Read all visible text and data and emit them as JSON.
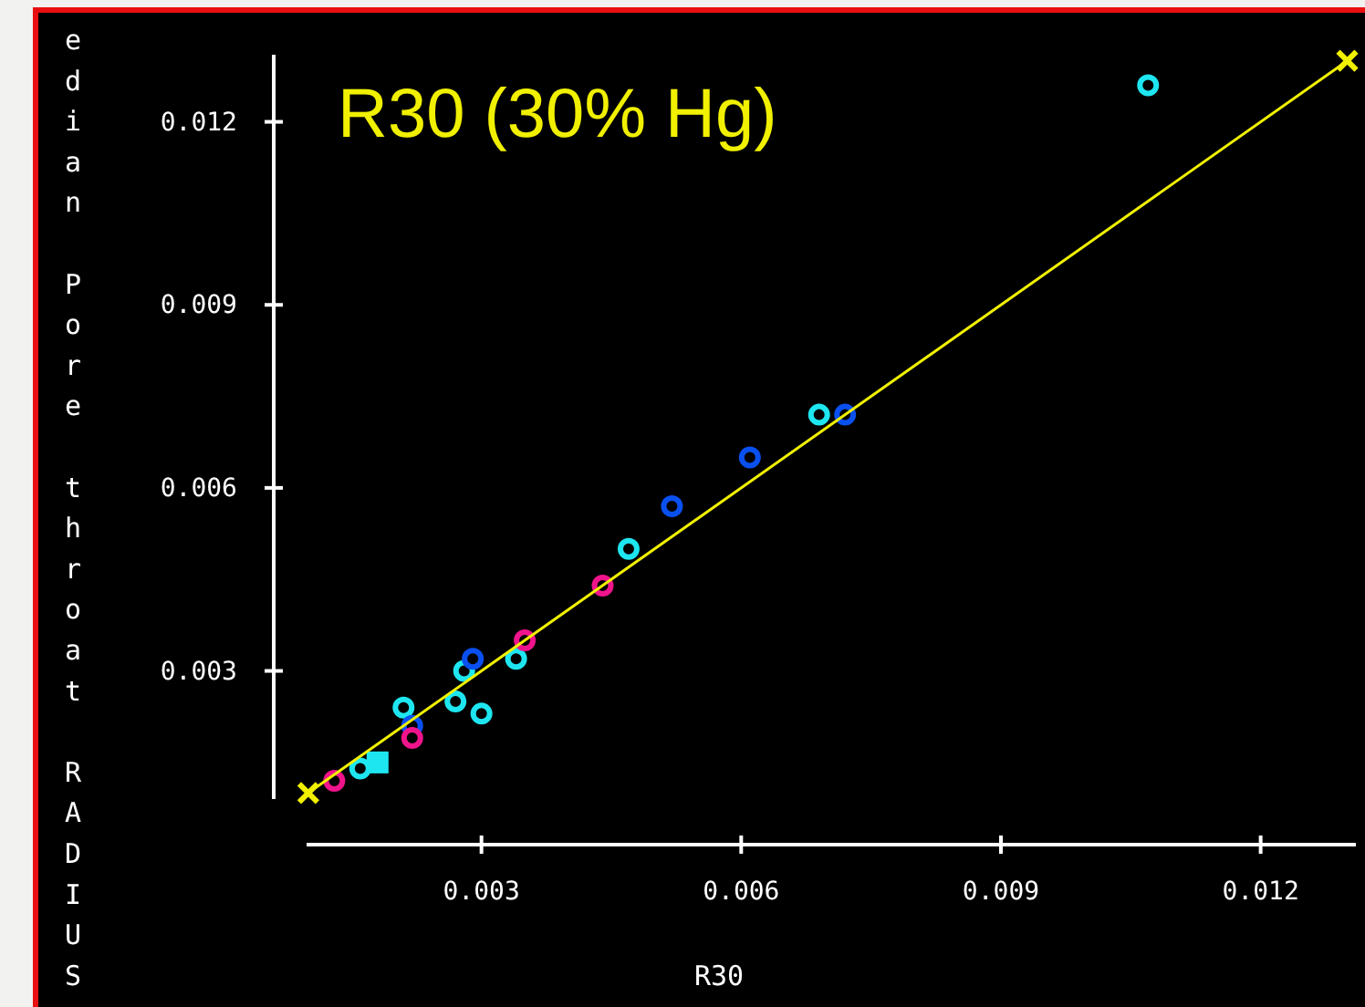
{
  "chart_data": {
    "type": "scatter",
    "title": "R30 (30% Hg)",
    "xlabel": "R30",
    "ylabel": "edian Pore throat RADIUS",
    "xlim": [
      0.00098,
      0.0131
    ],
    "ylim": [
      0.0009,
      0.0131
    ],
    "xticks": [
      0.003,
      0.006,
      0.009,
      0.012
    ],
    "yticks": [
      0.003,
      0.006,
      0.009,
      0.012
    ],
    "marker": "circle",
    "series": [
      {
        "color": "#1ee6f0",
        "x": [
          0.0107,
          0.0069,
          0.0047,
          0.0034,
          0.0028,
          0.0021,
          0.0027,
          0.003,
          0.0016
        ],
        "values": [
          0.0126,
          0.0072,
          0.005,
          0.0032,
          0.003,
          0.0024,
          0.0025,
          0.0023,
          0.0014
        ]
      },
      {
        "color": "#0a50f0",
        "x": [
          0.0072,
          0.0061,
          0.0052,
          0.0029,
          0.0022
        ],
        "values": [
          0.0072,
          0.0065,
          0.0057,
          0.0032,
          0.0021
        ]
      },
      {
        "color": "#f0148c",
        "x": [
          0.0044,
          0.0035,
          0.0022,
          0.0013
        ],
        "values": [
          0.0044,
          0.0035,
          0.0019,
          0.0012
        ]
      },
      {
        "color": "#1ee6f0",
        "marker": "square",
        "x": [
          0.0018
        ],
        "values": [
          0.0015
        ]
      },
      {
        "type": "line",
        "color": "#f0f000",
        "marker": "cross",
        "x": [
          0.001,
          0.013
        ],
        "values": [
          0.001,
          0.013
        ]
      }
    ]
  }
}
